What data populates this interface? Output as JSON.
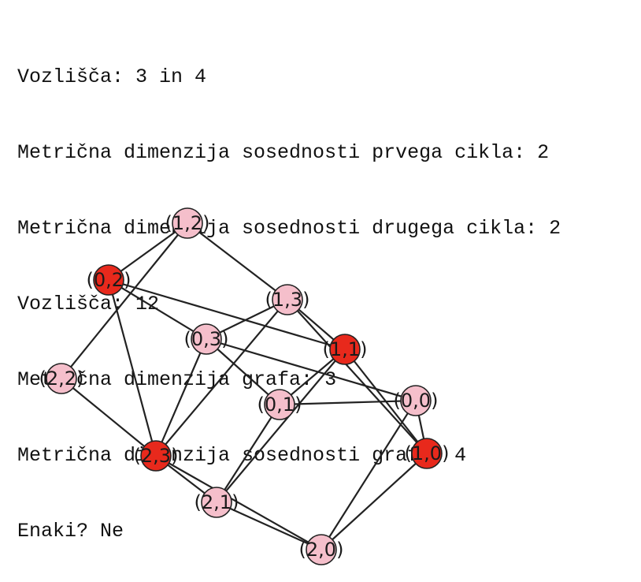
{
  "output_lines": [
    "Vozlišča: 3 in 4",
    "Metrična dimenzija sosednosti prvega cikla: 2",
    "Metrična dimenzija sosednosti drugega cikla: 2",
    "Vozlišča: 12",
    "Metrična dimenzija grafa: 3",
    "Metrična dimenzija sosednosti grafa: 4",
    "Enaki? Ne"
  ],
  "graph": {
    "colors": {
      "highlighted": "#e8291c",
      "normal": "#f5bfcb",
      "edge": "#222222"
    },
    "nodes": [
      {
        "id": "1,2",
        "label": "(1,2)",
        "highlighted": false
      },
      {
        "id": "0,2",
        "label": "(0,2)",
        "highlighted": true
      },
      {
        "id": "1,3",
        "label": "(1,3)",
        "highlighted": false
      },
      {
        "id": "0,3",
        "label": "(0,3)",
        "highlighted": false
      },
      {
        "id": "1,1",
        "label": "(1,1)",
        "highlighted": true
      },
      {
        "id": "2,2",
        "label": "(2,2)",
        "highlighted": false
      },
      {
        "id": "0,1",
        "label": "(0,1)",
        "highlighted": false
      },
      {
        "id": "0,0",
        "label": "(0,0)",
        "highlighted": false
      },
      {
        "id": "1,0",
        "label": "(1,0)",
        "highlighted": true
      },
      {
        "id": "2,3",
        "label": "(2,3)",
        "highlighted": true
      },
      {
        "id": "2,1",
        "label": "(2,1)",
        "highlighted": false
      },
      {
        "id": "2,0",
        "label": "(2,0)",
        "highlighted": false
      }
    ],
    "edges": [
      [
        "1,2",
        "0,2"
      ],
      [
        "1,2",
        "2,2"
      ],
      [
        "1,2",
        "1,3"
      ],
      [
        "0,2",
        "0,3"
      ],
      [
        "0,2",
        "1,1"
      ],
      [
        "0,2",
        "2,3"
      ],
      [
        "1,3",
        "0,3"
      ],
      [
        "1,3",
        "1,1"
      ],
      [
        "1,3",
        "1,0"
      ],
      [
        "1,3",
        "2,3"
      ],
      [
        "0,3",
        "2,3"
      ],
      [
        "0,3",
        "0,0"
      ],
      [
        "0,3",
        "0,1"
      ],
      [
        "1,1",
        "0,1"
      ],
      [
        "1,1",
        "2,1"
      ],
      [
        "1,1",
        "1,0"
      ],
      [
        "2,2",
        "2,3"
      ],
      [
        "2,3",
        "2,1"
      ],
      [
        "2,3",
        "2,0"
      ],
      [
        "0,1",
        "0,0"
      ],
      [
        "0,1",
        "2,1"
      ],
      [
        "0,0",
        "1,0"
      ],
      [
        "0,0",
        "2,0"
      ],
      [
        "1,0",
        "2,0"
      ],
      [
        "2,1",
        "2,0"
      ]
    ]
  }
}
